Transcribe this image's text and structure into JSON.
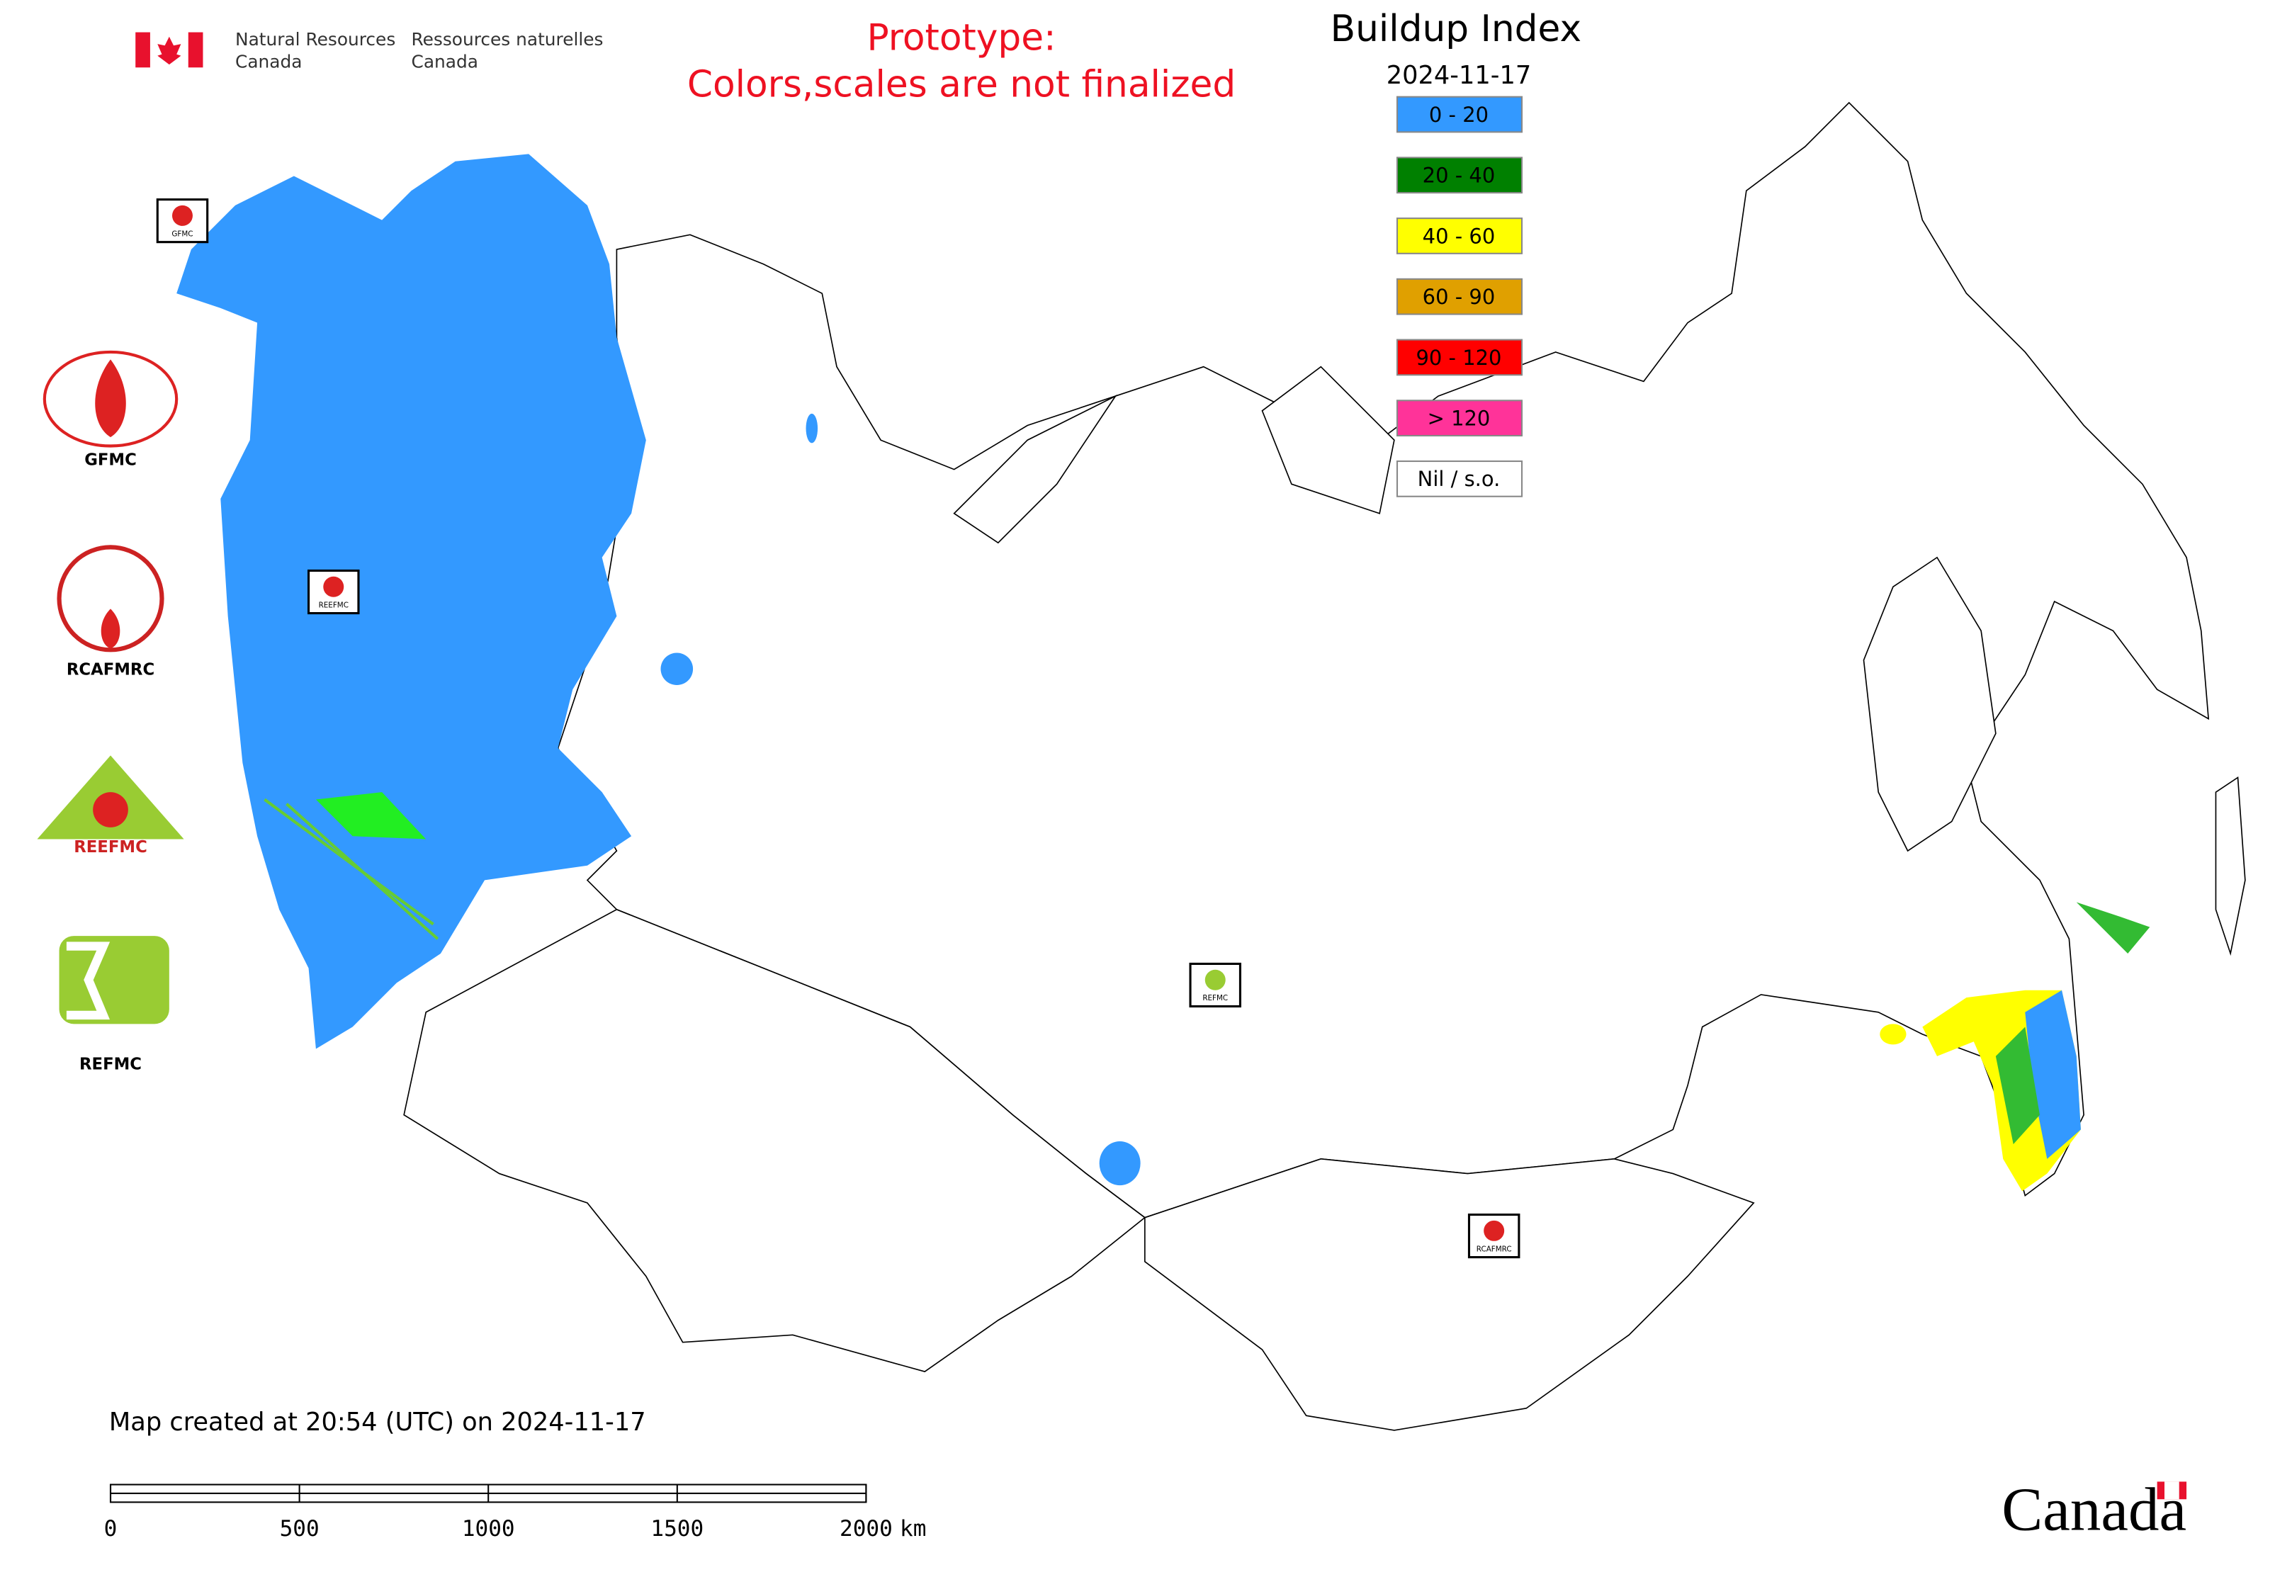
{
  "header": {
    "agency_en": [
      "Natural Resources",
      "Canada"
    ],
    "agency_fr": [
      "Ressources naturelles",
      "Canada"
    ]
  },
  "notice": [
    "Prototype:",
    "Colors,scales are not finalized"
  ],
  "legend": {
    "title": "Buildup Index",
    "date": "2024-11-17",
    "items": [
      {
        "label": "0 - 20",
        "color": "#3399ff"
      },
      {
        "label": "20 - 40",
        "color": "#008000"
      },
      {
        "label": "40 - 60",
        "color": "#ffff00"
      },
      {
        "label": "60 - 90",
        "color": "#e0a000"
      },
      {
        "label": "90 - 120",
        "color": "#ff0000"
      },
      {
        "label": "> 120",
        "color": "#ff3399"
      },
      {
        "label": "Nil / s.o.",
        "color": "#ffffff"
      }
    ]
  },
  "logos": [
    "GFMC",
    "RCAFMRC",
    "REEFMC",
    "REFMC"
  ],
  "map_markers": [
    "GFMC",
    "REEFMC",
    "REFMC",
    "RCAFMRC"
  ],
  "footer": "Map created at 20:54 (UTC) on 2024-11-17",
  "scale_bar": {
    "range": [
      0,
      2000
    ],
    "ticks": [
      0,
      500,
      1000,
      1500,
      2000
    ],
    "unit": "km"
  },
  "wordmark": "Canada"
}
